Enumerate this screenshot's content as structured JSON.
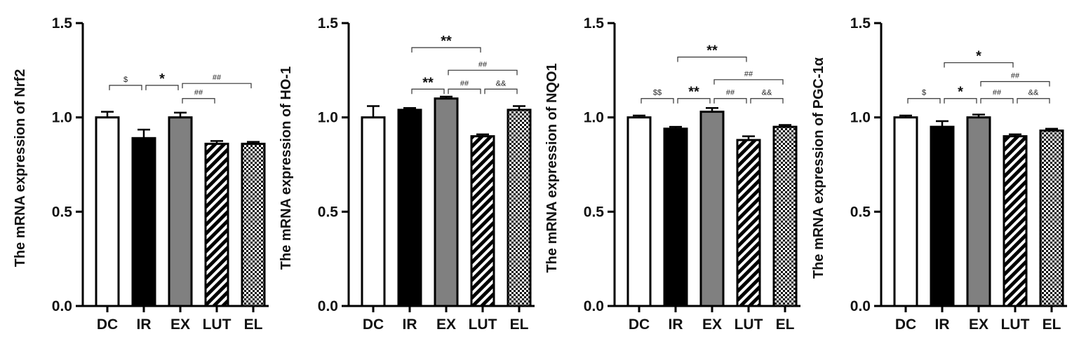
{
  "colors": {
    "DC": "#ffffff",
    "IR": "#000000",
    "EX": "#808080",
    "LUT": "diagonal-stripes",
    "EL": "checkerboard",
    "axis": "#000000"
  },
  "chart_data": [
    {
      "type": "bar",
      "categories": [
        "DC",
        "IR",
        "EX",
        "LUT",
        "EL"
      ],
      "values": [
        1.0,
        0.89,
        1.0,
        0.86,
        0.86
      ],
      "errors": [
        0.03,
        0.045,
        0.025,
        0.015,
        0.01
      ],
      "ylabel": "The mRNA expression of Nrf2",
      "ylim": [
        0,
        1.5
      ],
      "yticks": [
        "0.0",
        "0.5",
        "1.0",
        "1.5"
      ],
      "annotations": [
        {
          "from": 0,
          "to": 1,
          "y": 1.17,
          "label": "$"
        },
        {
          "from": 1,
          "to": 2,
          "y": 1.17,
          "label": "*"
        },
        {
          "from": 2,
          "to": 3,
          "y": 1.1,
          "label": "##"
        },
        {
          "from": 2,
          "to": 4,
          "y": 1.18,
          "label": "##"
        }
      ]
    },
    {
      "type": "bar",
      "categories": [
        "DC",
        "IR",
        "EX",
        "LUT",
        "EL"
      ],
      "values": [
        1.0,
        1.04,
        1.1,
        0.9,
        1.04
      ],
      "errors": [
        0.06,
        0.01,
        0.01,
        0.01,
        0.02
      ],
      "ylabel": "The mRNA expression of HO-1",
      "ylim": [
        0,
        1.5
      ],
      "yticks": [
        "0.0",
        "0.5",
        "1.0",
        "1.5"
      ],
      "annotations": [
        {
          "from": 1,
          "to": 3,
          "y": 1.37,
          "label": "**"
        },
        {
          "from": 1,
          "to": 2,
          "y": 1.15,
          "label": "**"
        },
        {
          "from": 2,
          "to": 4,
          "y": 1.25,
          "label": "##"
        },
        {
          "from": 2,
          "to": 3,
          "y": 1.15,
          "label": "##"
        },
        {
          "from": 3,
          "to": 4,
          "y": 1.15,
          "label": "&&"
        }
      ]
    },
    {
      "type": "bar",
      "categories": [
        "DC",
        "IR",
        "EX",
        "LUT",
        "EL"
      ],
      "values": [
        1.0,
        0.94,
        1.03,
        0.88,
        0.95
      ],
      "errors": [
        0.01,
        0.01,
        0.02,
        0.02,
        0.01
      ],
      "ylabel": "The mRNA expression of NQO1",
      "ylim": [
        0,
        1.5
      ],
      "yticks": [
        "0.0",
        "0.5",
        "1.0",
        "1.5"
      ],
      "annotations": [
        {
          "from": 1,
          "to": 3,
          "y": 1.32,
          "label": "**"
        },
        {
          "from": 0,
          "to": 1,
          "y": 1.1,
          "label": "$$"
        },
        {
          "from": 1,
          "to": 2,
          "y": 1.1,
          "label": "**"
        },
        {
          "from": 2,
          "to": 4,
          "y": 1.2,
          "label": "##"
        },
        {
          "from": 2,
          "to": 3,
          "y": 1.1,
          "label": "##"
        },
        {
          "from": 3,
          "to": 4,
          "y": 1.1,
          "label": "&&"
        }
      ]
    },
    {
      "type": "bar",
      "categories": [
        "DC",
        "IR",
        "EX",
        "LUT",
        "EL"
      ],
      "values": [
        1.0,
        0.95,
        1.0,
        0.9,
        0.93
      ],
      "errors": [
        0.01,
        0.03,
        0.015,
        0.01,
        0.01
      ],
      "ylabel": "The mRNA expression of PGC-1α",
      "ylim": [
        0,
        1.5
      ],
      "yticks": [
        "0.0",
        "0.5",
        "1.0",
        "1.5"
      ],
      "annotations": [
        {
          "from": 1,
          "to": 3,
          "y": 1.29,
          "label": "*"
        },
        {
          "from": 0,
          "to": 1,
          "y": 1.1,
          "label": "$"
        },
        {
          "from": 1,
          "to": 2,
          "y": 1.1,
          "label": "*"
        },
        {
          "from": 2,
          "to": 4,
          "y": 1.19,
          "label": "##"
        },
        {
          "from": 2,
          "to": 3,
          "y": 1.1,
          "label": "##"
        },
        {
          "from": 3,
          "to": 4,
          "y": 1.1,
          "label": "&&"
        }
      ]
    }
  ]
}
